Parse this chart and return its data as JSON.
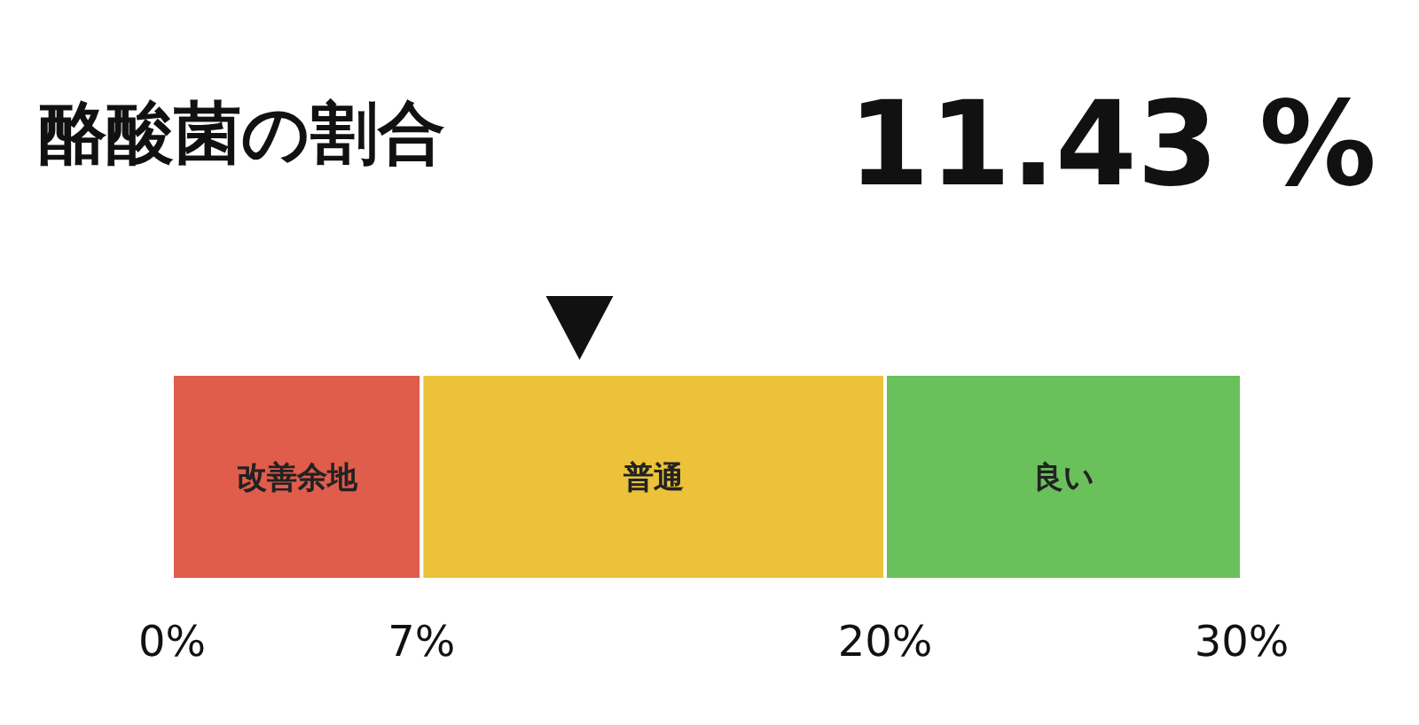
{
  "chart_data": {
    "type": "bar",
    "title": "酪酸菌の割合",
    "orientation": "horizontal",
    "stacked": true,
    "categories": [
      null
    ],
    "series": [
      {
        "name": "改善余地",
        "color": "#e05c4b",
        "values": [
          7
        ]
      },
      {
        "name": "普通",
        "color": "#ecc23a",
        "values": [
          13
        ]
      },
      {
        "name": "良い",
        "color": "#6ac05a",
        "values": [
          10
        ]
      }
    ],
    "xlim": [
      0,
      30
    ],
    "xticks": [
      {
        "value": 0,
        "label": "0%"
      },
      {
        "value": 7,
        "label": "7%"
      },
      {
        "value": 20,
        "label": "20%"
      },
      {
        "value": 30,
        "label": "30%"
      }
    ],
    "tick_labels": "x",
    "annotations": [
      "11.43 %"
    ]
  }
}
